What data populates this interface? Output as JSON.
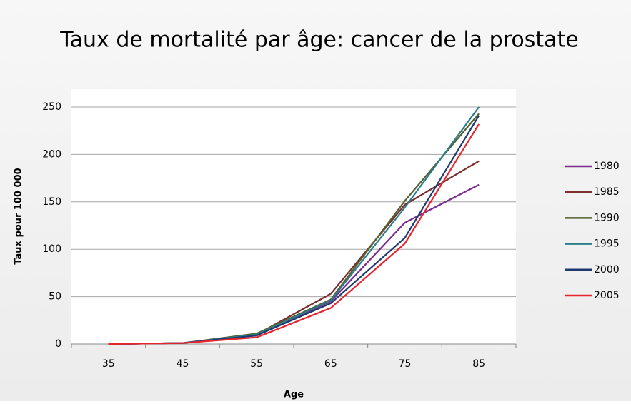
{
  "chart_data": {
    "type": "line",
    "title": "Taux de mortalité par âge: cancer de la prostate",
    "x_label": "Age",
    "y_label": "Taux pour 100 000",
    "categories": [
      "35",
      "45",
      "55",
      "65",
      "75",
      "85"
    ],
    "series": [
      {
        "name": "1980",
        "color": "#7b2a8e",
        "values": [
          0,
          1,
          9,
          45,
          128,
          168
        ]
      },
      {
        "name": "1985",
        "color": "#7a2e2e",
        "values": [
          0,
          1,
          10,
          53,
          147,
          193
        ]
      },
      {
        "name": "1990",
        "color": "#55602f",
        "values": [
          0,
          1,
          11,
          47,
          151,
          243
        ]
      },
      {
        "name": "1995",
        "color": "#2e7d8c",
        "values": [
          0,
          1,
          10,
          46,
          144,
          250
        ]
      },
      {
        "name": "2000",
        "color": "#1f3a6e",
        "values": [
          0,
          1,
          9,
          43,
          112,
          241
        ]
      },
      {
        "name": "2005",
        "color": "#e8252d",
        "values": [
          0,
          1,
          7,
          38,
          106,
          232
        ]
      }
    ],
    "ylim": [
      0,
      250
    ],
    "yticks": [
      0,
      50,
      100,
      150,
      200,
      250
    ],
    "grid": true,
    "legend": "right"
  }
}
